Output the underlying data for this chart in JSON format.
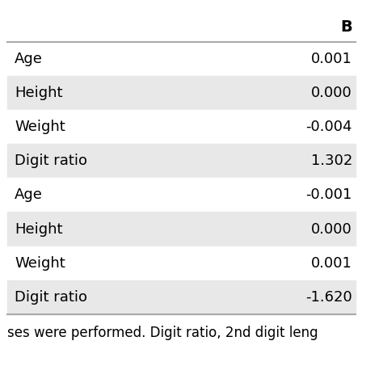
{
  "header": [
    "",
    "B"
  ],
  "rows": [
    [
      "Age",
      "0.001"
    ],
    [
      "Height",
      "0.000"
    ],
    [
      "Weight",
      "-0.004"
    ],
    [
      "Digit ratio",
      "1.302"
    ],
    [
      "Age",
      "-0.001"
    ],
    [
      "Height",
      "0.000"
    ],
    [
      "Weight",
      "0.001"
    ],
    [
      "Digit ratio",
      "-1.620"
    ]
  ],
  "row_colors": [
    "#ffffff",
    "#e8e8e8",
    "#ffffff",
    "#e8e8e8",
    "#ffffff",
    "#e8e8e8",
    "#ffffff",
    "#e8e8e8"
  ],
  "footer_text": "ses were performed. Digit ratio, 2nd digit leng",
  "header_bg": "#ffffff",
  "font_size": 13,
  "header_font_size": 14,
  "footer_font_size": 12,
  "background_color": "#ffffff",
  "border_color": "#aaaaaa",
  "text_color": "#000000"
}
